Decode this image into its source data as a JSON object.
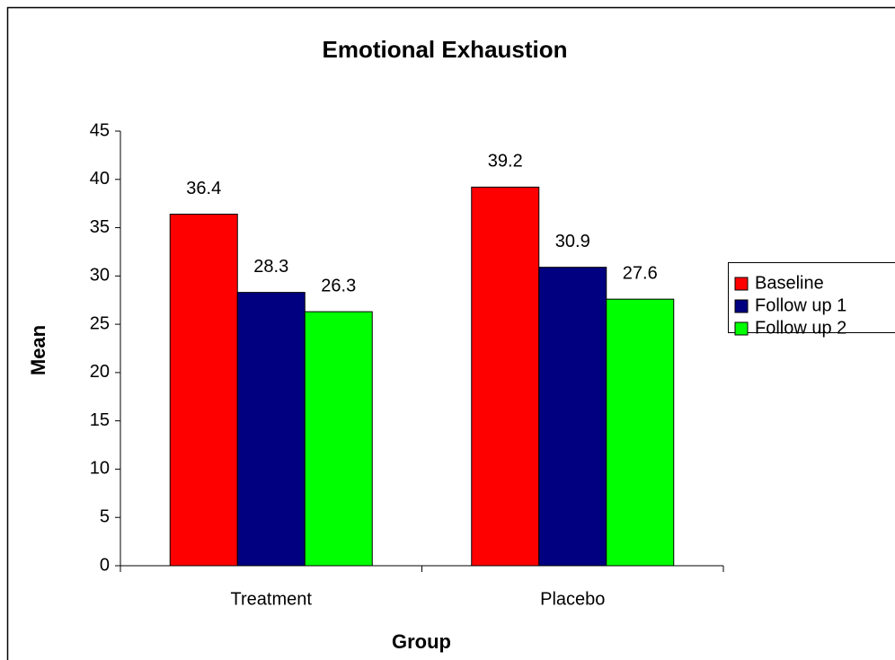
{
  "chart_data": {
    "type": "bar",
    "title": "Emotional Exhaustion",
    "x_label": "Group",
    "y_label": "Mean",
    "categories": [
      "Treatment",
      "Placebo"
    ],
    "series": [
      {
        "name": "Baseline",
        "color": "#ff0000",
        "values": [
          36.4,
          39.2
        ]
      },
      {
        "name": "Follow up 1",
        "color": "#000080",
        "values": [
          28.3,
          30.9
        ]
      },
      {
        "name": "Follow up 2",
        "color": "#00ff00",
        "values": [
          26.3,
          27.6
        ]
      }
    ],
    "ylim": [
      0,
      45
    ],
    "yticks": [
      0,
      5,
      10,
      15,
      20,
      25,
      30,
      35,
      40,
      45
    ],
    "grid": false,
    "legend": "right"
  }
}
